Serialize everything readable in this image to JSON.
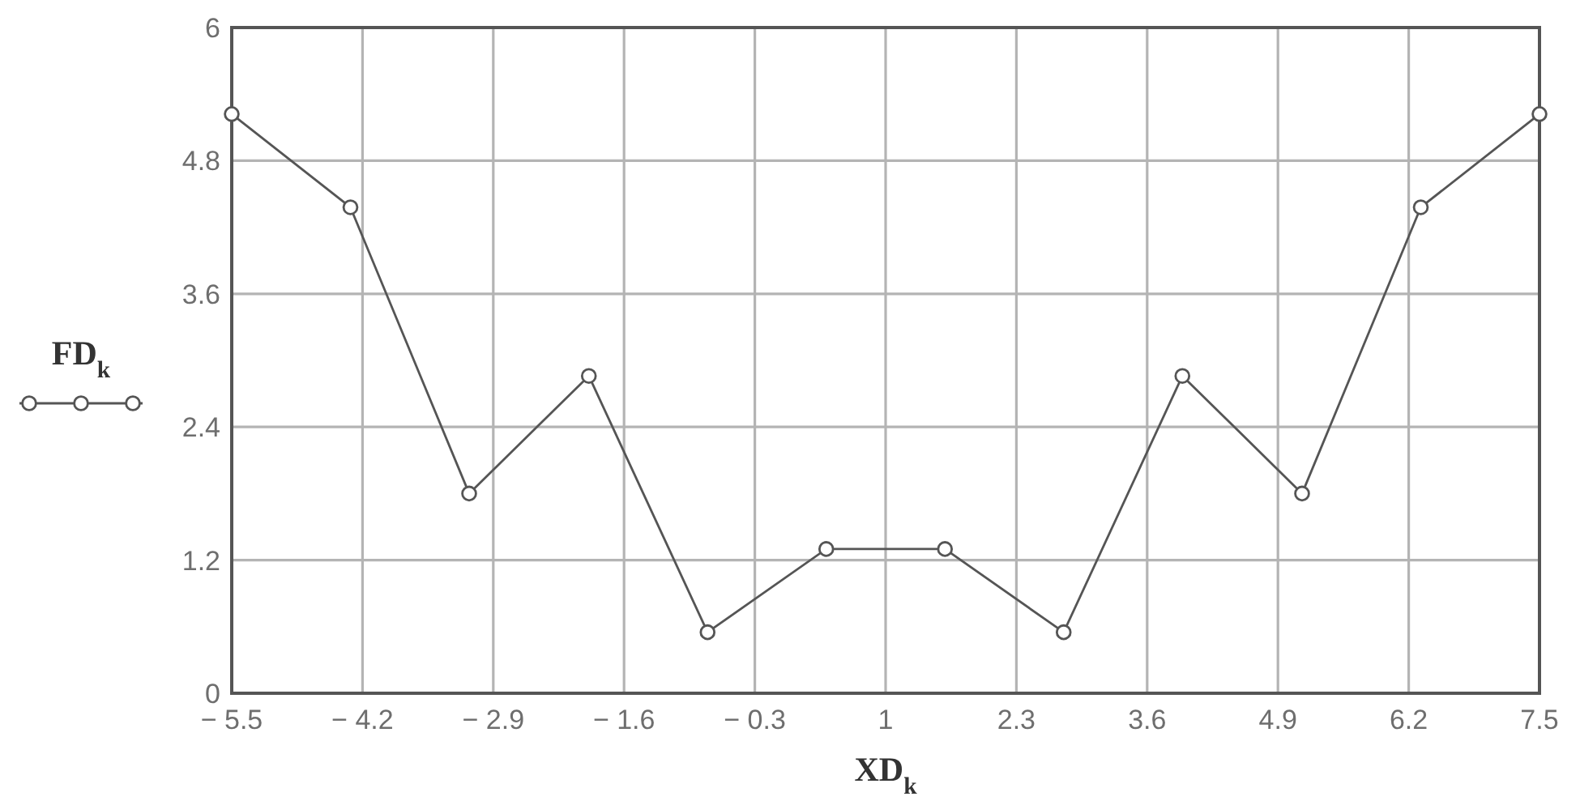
{
  "chart_data": {
    "type": "line",
    "xlabel": "XD$_{k}$",
    "x": [
      -5.5,
      -4.32,
      -3.14,
      -1.95,
      -0.77,
      0.41,
      1.59,
      2.77,
      3.95,
      5.14,
      6.32,
      7.5
    ],
    "series": [
      {
        "name": "FD$_{k}$",
        "color": "#555555",
        "values": [
          5.22,
          4.38,
          1.8,
          2.86,
          0.55,
          1.3,
          1.3,
          0.55,
          2.86,
          1.8,
          4.38,
          5.22
        ]
      }
    ],
    "xlim": [
      -5.5,
      7.5
    ],
    "ylim": [
      0,
      6
    ],
    "xticks": [
      {
        "value": -5.5,
        "label": "− 5.5"
      },
      {
        "value": -4.2,
        "label": "− 4.2"
      },
      {
        "value": -2.9,
        "label": "− 2.9"
      },
      {
        "value": -1.6,
        "label": "− 1.6"
      },
      {
        "value": -0.3,
        "label": "− 0.3"
      },
      1,
      2.3,
      3.6,
      4.9,
      6.2,
      7.5
    ],
    "yticks": [
      0,
      1.2,
      2.4,
      3.6,
      4.8,
      6
    ],
    "grid": true,
    "legend": "left",
    "marker": "circle",
    "line_style": "solid"
  }
}
